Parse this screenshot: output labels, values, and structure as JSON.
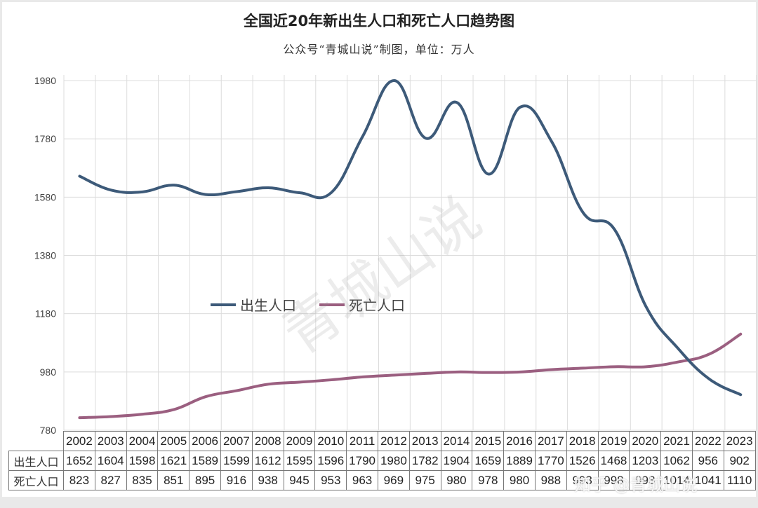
{
  "header": {
    "title": "全国近20年新出生人口和死亡人口趋势图",
    "subtitle": "公众号“青城山说”制图，单位：万人"
  },
  "legend": {
    "births": "出生人口",
    "deaths": "死亡人口"
  },
  "table": {
    "row_births": "出生人口",
    "row_deaths": "死亡人口"
  },
  "watermark": "青城山说",
  "source_watermark": "知乎 @青城山说",
  "colors": {
    "births": "#3d5a79",
    "deaths": "#9b5f80",
    "grid": "#dcdcdc"
  },
  "chart_data": {
    "type": "line",
    "title": "全国近20年新出生人口和死亡人口趋势图",
    "subtitle": "公众号“青城山说”制图，单位：万人",
    "xlabel": "",
    "ylabel": "万人",
    "categories": [
      "2002",
      "2003",
      "2004",
      "2005",
      "2006",
      "2007",
      "2008",
      "2009",
      "2010",
      "2011",
      "2012",
      "2013",
      "2014",
      "2015",
      "2016",
      "2017",
      "2018",
      "2019",
      "2020",
      "2021",
      "2022",
      "2023"
    ],
    "series": [
      {
        "name": "出生人口",
        "values": [
          1652,
          1604,
          1598,
          1621,
          1589,
          1599,
          1612,
          1595,
          1596,
          1790,
          1980,
          1782,
          1904,
          1659,
          1889,
          1770,
          1526,
          1468,
          1203,
          1062,
          956,
          902
        ]
      },
      {
        "name": "死亡人口",
        "values": [
          823,
          827,
          835,
          851,
          895,
          916,
          938,
          945,
          953,
          963,
          969,
          975,
          980,
          978,
          980,
          988,
          993,
          998,
          998,
          1014,
          1041,
          1110
        ]
      }
    ],
    "ylim": [
      780,
      1980
    ],
    "yticks": [
      780,
      980,
      1180,
      1380,
      1580,
      1780,
      1980
    ],
    "grid": true,
    "legend_position": "inside-center-left",
    "data_table": true
  }
}
